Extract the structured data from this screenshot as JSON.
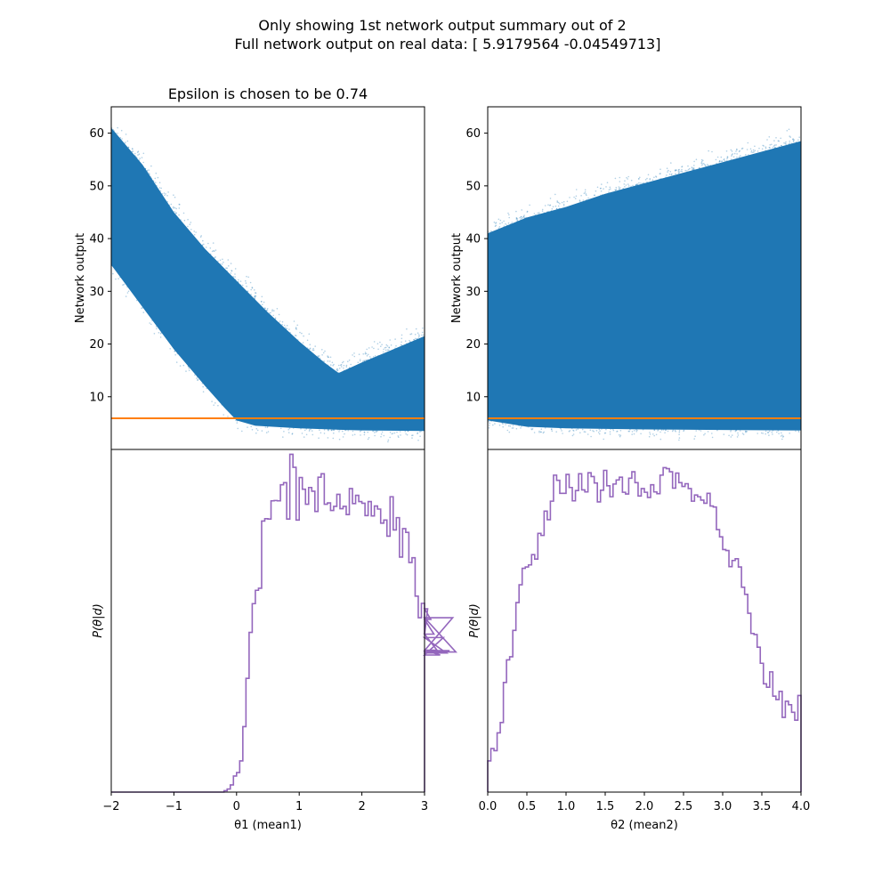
{
  "figure": {
    "title_line1": "Only showing 1st network output summary out of 2",
    "title_line2": "Full network output on real data: [ 5.9179564  -0.04549713]"
  },
  "colors": {
    "scatter": "#1f77b4",
    "threshold_black": "#000000",
    "threshold_orange": "#ff7f0e",
    "histogram": "#9467bd"
  },
  "chart_data": [
    {
      "id": "scatter1",
      "type": "scatter",
      "title": "Epsilon is chosen to be 0.74",
      "xlabel": "",
      "ylabel": "Network output",
      "xlim": [
        -2,
        3
      ],
      "ylim": [
        0,
        65
      ],
      "yticks": [
        "10",
        "20",
        "30",
        "40",
        "50",
        "60"
      ],
      "threshold": 5.9179564,
      "band_upper": [
        [
          -2,
          61
        ],
        [
          -1.5,
          54
        ],
        [
          -1,
          45
        ],
        [
          -0.5,
          38
        ],
        [
          0,
          32
        ],
        [
          0.5,
          26
        ],
        [
          1,
          20.5
        ],
        [
          1.4,
          16.5
        ],
        [
          1.63,
          14.5
        ],
        [
          2,
          16.5
        ],
        [
          2.5,
          19
        ],
        [
          3,
          21.5
        ]
      ],
      "band_lower": [
        [
          -2,
          35
        ],
        [
          -1.5,
          27
        ],
        [
          -1,
          19
        ],
        [
          -0.5,
          12
        ],
        [
          -0.2,
          8
        ],
        [
          0,
          5.5
        ],
        [
          0.3,
          4.5
        ],
        [
          1,
          4
        ],
        [
          2,
          3.6
        ],
        [
          3,
          3.5
        ]
      ]
    },
    {
      "id": "scatter2",
      "type": "scatter",
      "title": "",
      "xlabel": "",
      "ylabel": "Network output",
      "xlim": [
        0,
        4
      ],
      "ylim": [
        0,
        65
      ],
      "yticks": [
        "10",
        "20",
        "30",
        "40",
        "50",
        "60"
      ],
      "threshold": 5.9179564,
      "band_upper": [
        [
          0,
          41
        ],
        [
          0.5,
          44
        ],
        [
          1,
          46
        ],
        [
          1.5,
          48.5
        ],
        [
          2,
          50.5
        ],
        [
          2.5,
          52.5
        ],
        [
          3,
          54.5
        ],
        [
          3.5,
          56.5
        ],
        [
          4,
          58.5
        ]
      ],
      "band_lower": [
        [
          0,
          5.5
        ],
        [
          0.5,
          4.3
        ],
        [
          1,
          4
        ],
        [
          2,
          3.8
        ],
        [
          3,
          3.7
        ],
        [
          4,
          3.6
        ]
      ]
    },
    {
      "id": "hist1",
      "type": "bar",
      "title": "",
      "xlabel": "θ1 (mean1)",
      "ylabel": "P(θ|d)",
      "xlim": [
        -2,
        3
      ],
      "ylim": [
        0,
        1.0
      ],
      "xticks": [
        "−2",
        "−1",
        "0",
        "1",
        "2",
        "3"
      ],
      "bin_start": -2,
      "bin_width": 0.05,
      "values": [
        0,
        0,
        0,
        0,
        0,
        0,
        0,
        0,
        0,
        0,
        0,
        0,
        0,
        0,
        0,
        0,
        0,
        0,
        0,
        0,
        0,
        0,
        0,
        0,
        0,
        0,
        0,
        0,
        0,
        0,
        0,
        0,
        0,
        0,
        0,
        0,
        0.004,
        0.009,
        0.021,
        0.047,
        0.057,
        0.091,
        0.191,
        0.332,
        0.466,
        0.55,
        0.589,
        0.595,
        0.791,
        0.798,
        0.797,
        0.85,
        0.851,
        0.85,
        0.897,
        0.903,
        0.797,
        0.986,
        0.948,
        0.794,
        0.918,
        0.884,
        0.84,
        0.889,
        0.878,
        0.819,
        0.919,
        0.929,
        0.84,
        0.844,
        0.822,
        0.834,
        0.869,
        0.827,
        0.834,
        0.81,
        0.886,
        0.842,
        0.866,
        0.848,
        0.843,
        0.807,
        0.848,
        0.806,
        0.835,
        0.826,
        0.785,
        0.794,
        0.747,
        0.862,
        0.765,
        0.801,
        0.686,
        0.769,
        0.758,
        0.67,
        0.684,
        0.572,
        0.509,
        0.551,
        0.459,
        0.535,
        0.504,
        0.461,
        0.414,
        0.4,
        0.451,
        0.406,
        0.413,
        0.509,
        0.409
      ]
    },
    {
      "id": "hist2",
      "type": "bar",
      "title": "",
      "xlabel": "θ2 (mean2)",
      "ylabel": "P(θ|d)",
      "xlim": [
        0,
        4
      ],
      "ylim": [
        0,
        1.0
      ],
      "xticks": [
        "0.0",
        "0.5",
        "1.0",
        "1.5",
        "2.0",
        "2.5",
        "3.0",
        "3.5",
        "4.0"
      ],
      "bin_start": 0,
      "bin_width": 0.04,
      "values": [
        0.091,
        0.127,
        0.121,
        0.173,
        0.203,
        0.32,
        0.386,
        0.395,
        0.472,
        0.553,
        0.605,
        0.653,
        0.657,
        0.663,
        0.693,
        0.68,
        0.755,
        0.749,
        0.82,
        0.795,
        0.849,
        0.925,
        0.91,
        0.872,
        0.872,
        0.927,
        0.889,
        0.85,
        0.88,
        0.929,
        0.882,
        0.876,
        0.932,
        0.921,
        0.902,
        0.847,
        0.881,
        0.939,
        0.894,
        0.862,
        0.899,
        0.911,
        0.919,
        0.875,
        0.87,
        0.916,
        0.935,
        0.903,
        0.864,
        0.886,
        0.875,
        0.86,
        0.897,
        0.876,
        0.871,
        0.925,
        0.947,
        0.944,
        0.935,
        0.887,
        0.931,
        0.903,
        0.892,
        0.9,
        0.886,
        0.849,
        0.867,
        0.862,
        0.852,
        0.843,
        0.872,
        0.835,
        0.832,
        0.766,
        0.745,
        0.708,
        0.705,
        0.658,
        0.676,
        0.681,
        0.657,
        0.598,
        0.577,
        0.522,
        0.463,
        0.46,
        0.423,
        0.376,
        0.316,
        0.306,
        0.351,
        0.28,
        0.27,
        0.294,
        0.218,
        0.265,
        0.255,
        0.233,
        0.21,
        0.282,
        0.251
      ]
    }
  ]
}
